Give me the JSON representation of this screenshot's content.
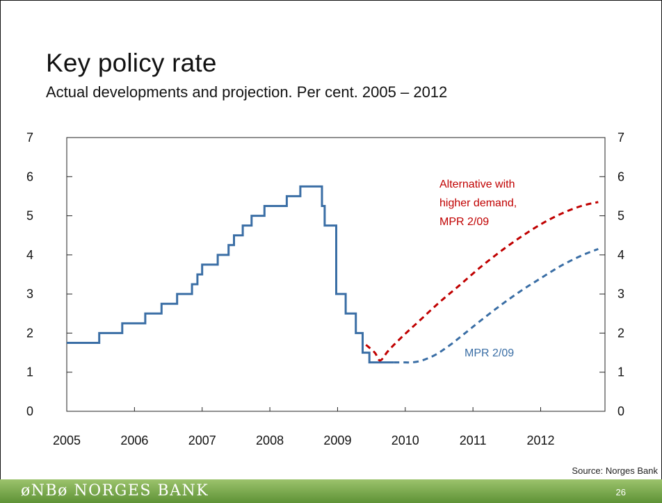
{
  "header": {
    "title": "Key policy rate",
    "subtitle": "Actual developments and projection. Per cent. 2005 – 2012"
  },
  "footer": {
    "brand": "øNBø NORGES BANK",
    "page_number": "26",
    "source": "Source: Norges Bank"
  },
  "colors": {
    "actual": "#3a6ea5",
    "projection": "#3a6ea5",
    "alternative": "#c00000",
    "footer": "#7aa84a"
  },
  "chart_data": {
    "type": "line",
    "title": "Key policy rate",
    "subtitle": "Actual developments and projection. Per cent. 2005 – 2012",
    "xlabel": "",
    "ylabel": "",
    "xlim": [
      2005.0,
      2012.95
    ],
    "ylim": [
      0,
      7
    ],
    "y_ticks": [
      "0",
      "1",
      "2",
      "3",
      "4",
      "5",
      "6",
      "7"
    ],
    "x_ticks": [
      {
        "label": "2005",
        "value": 2005.0
      },
      {
        "label": "2006",
        "value": 2006.0
      },
      {
        "label": "2007",
        "value": 2007.0
      },
      {
        "label": "2008",
        "value": 2008.0
      },
      {
        "label": "2009",
        "value": 2009.0
      },
      {
        "label": "2010",
        "value": 2010.0
      },
      {
        "label": "2011",
        "value": 2011.0
      },
      {
        "label": "2012",
        "value": 2012.0
      }
    ],
    "grid": false,
    "series": [
      {
        "key": "actual",
        "style": "step-solid",
        "color": "#3a6ea5",
        "x": [
          2005.0,
          2005.48,
          2005.82,
          2006.16,
          2006.4,
          2006.63,
          2006.85,
          2006.93,
          2007.0,
          2007.23,
          2007.39,
          2007.47,
          2007.6,
          2007.73,
          2007.92,
          2008.25,
          2008.45,
          2008.77,
          2008.81,
          2008.86,
          2008.98,
          2009.12,
          2009.27,
          2009.37,
          2009.47,
          2009.58,
          2009.83
        ],
        "y": [
          1.75,
          2.0,
          2.25,
          2.5,
          2.75,
          3.0,
          3.25,
          3.5,
          3.75,
          4.0,
          4.25,
          4.5,
          4.75,
          5.0,
          5.25,
          5.5,
          5.75,
          5.25,
          4.75,
          4.75,
          3.0,
          2.5,
          2.0,
          1.5,
          1.25,
          1.25,
          1.25
        ]
      },
      {
        "key": "projection",
        "name": "MPR 2/09",
        "style": "dashed",
        "color": "#3a6ea5",
        "x": [
          2009.83,
          2010.0,
          2010.1,
          2010.25,
          2010.45,
          2010.65,
          2010.85,
          2011.1,
          2011.4,
          2011.7,
          2012.0,
          2012.3,
          2012.6,
          2012.85
        ],
        "y": [
          1.25,
          1.25,
          1.25,
          1.3,
          1.45,
          1.68,
          1.95,
          2.3,
          2.7,
          3.07,
          3.4,
          3.72,
          3.98,
          4.15
        ]
      },
      {
        "key": "alternative",
        "name": "Alternative with higher demand, MPR 2/09",
        "style": "dashed",
        "color": "#c00000",
        "x": [
          2009.42,
          2009.55,
          2009.63,
          2009.75,
          2009.95,
          2010.2,
          2010.5,
          2010.8,
          2011.1,
          2011.4,
          2011.7,
          2012.0,
          2012.3,
          2012.6,
          2012.85
        ],
        "y": [
          1.7,
          1.5,
          1.3,
          1.55,
          1.9,
          2.3,
          2.78,
          3.22,
          3.67,
          4.08,
          4.45,
          4.78,
          5.05,
          5.25,
          5.35
        ]
      }
    ],
    "annotations": [
      {
        "key": "alternative",
        "lines": [
          "Alternative with",
          "higher demand,",
          "MPR 2/09"
        ],
        "color": "#c00000"
      },
      {
        "key": "projection",
        "lines": [
          "MPR 2/09"
        ],
        "color": "#3a6ea5"
      }
    ]
  }
}
